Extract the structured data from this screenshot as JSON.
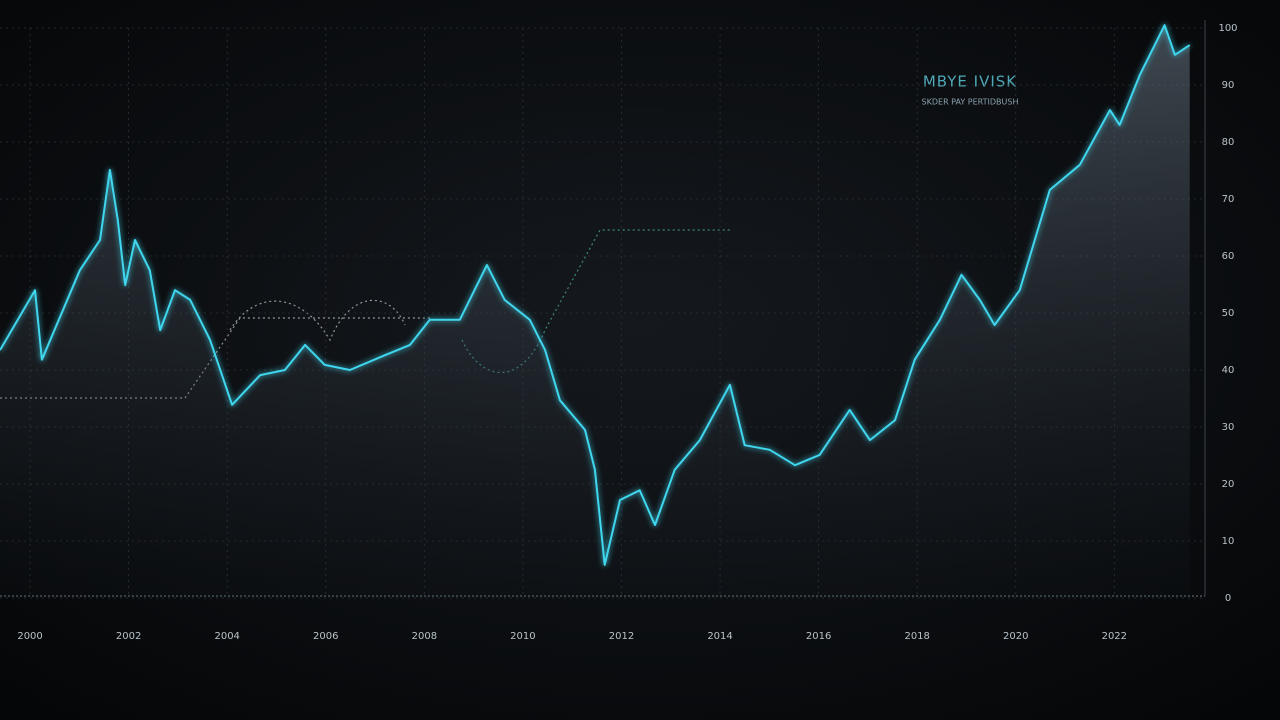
{
  "chart_data": {
    "type": "line",
    "title": "MBYE IVISK",
    "subtitle": "SKDER PAY PERTIDBUSH",
    "x": [
      1999.39,
      2000.1,
      2000.24,
      2001.01,
      2001.42,
      2001.62,
      2001.78,
      2001.93,
      2002.13,
      2002.43,
      2002.64,
      2002.94,
      2003.25,
      2003.65,
      2004.1,
      2004.67,
      2005.17,
      2005.58,
      2005.98,
      2006.49,
      2007.2,
      2007.71,
      2008.11,
      2008.72,
      2009.27,
      2009.63,
      2010.14,
      2010.45,
      2010.75,
      2011.26,
      2011.46,
      2011.66,
      2011.97,
      2012.37,
      2012.68,
      2013.08,
      2013.59,
      2014.2,
      2014.5,
      2015.01,
      2015.52,
      2016.02,
      2016.63,
      2017.04,
      2017.55,
      2017.95,
      2018.46,
      2018.9,
      2019.27,
      2019.57,
      2020.08,
      2020.69,
      2021.3,
      2021.91,
      2022.11,
      2022.52,
      2023.02,
      2023.23,
      2023.53
    ],
    "values": [
      43.5,
      54.0,
      41.8,
      57.5,
      62.8,
      75.1,
      66.3,
      54.9,
      62.8,
      57.5,
      47.0,
      54.0,
      52.3,
      45.3,
      33.9,
      39.1,
      40.0,
      44.4,
      40.9,
      40.0,
      42.6,
      44.4,
      48.8,
      48.8,
      58.4,
      52.3,
      48.8,
      43.5,
      34.7,
      29.5,
      22.5,
      5.8,
      17.2,
      18.9,
      12.8,
      22.5,
      27.7,
      37.4,
      26.8,
      26.0,
      23.3,
      25.1,
      33.0,
      27.7,
      31.2,
      41.8,
      48.8,
      56.7,
      52.3,
      47.9,
      54.0,
      71.6,
      76.0,
      85.6,
      83.0,
      91.8,
      100.5,
      95.3,
      97.0
    ],
    "color": "#3fd6ee",
    "xlim": [
      1999.39,
      2023.84
    ],
    "xticks": [
      2000,
      2002,
      2004,
      2006,
      2008,
      2010,
      2012,
      2014,
      2016,
      2018,
      2020,
      2022
    ],
    "ylim": [
      0,
      100
    ],
    "yticks": [
      100,
      90,
      80,
      70,
      60,
      50,
      40,
      30,
      20,
      10,
      0
    ],
    "grid": true
  }
}
